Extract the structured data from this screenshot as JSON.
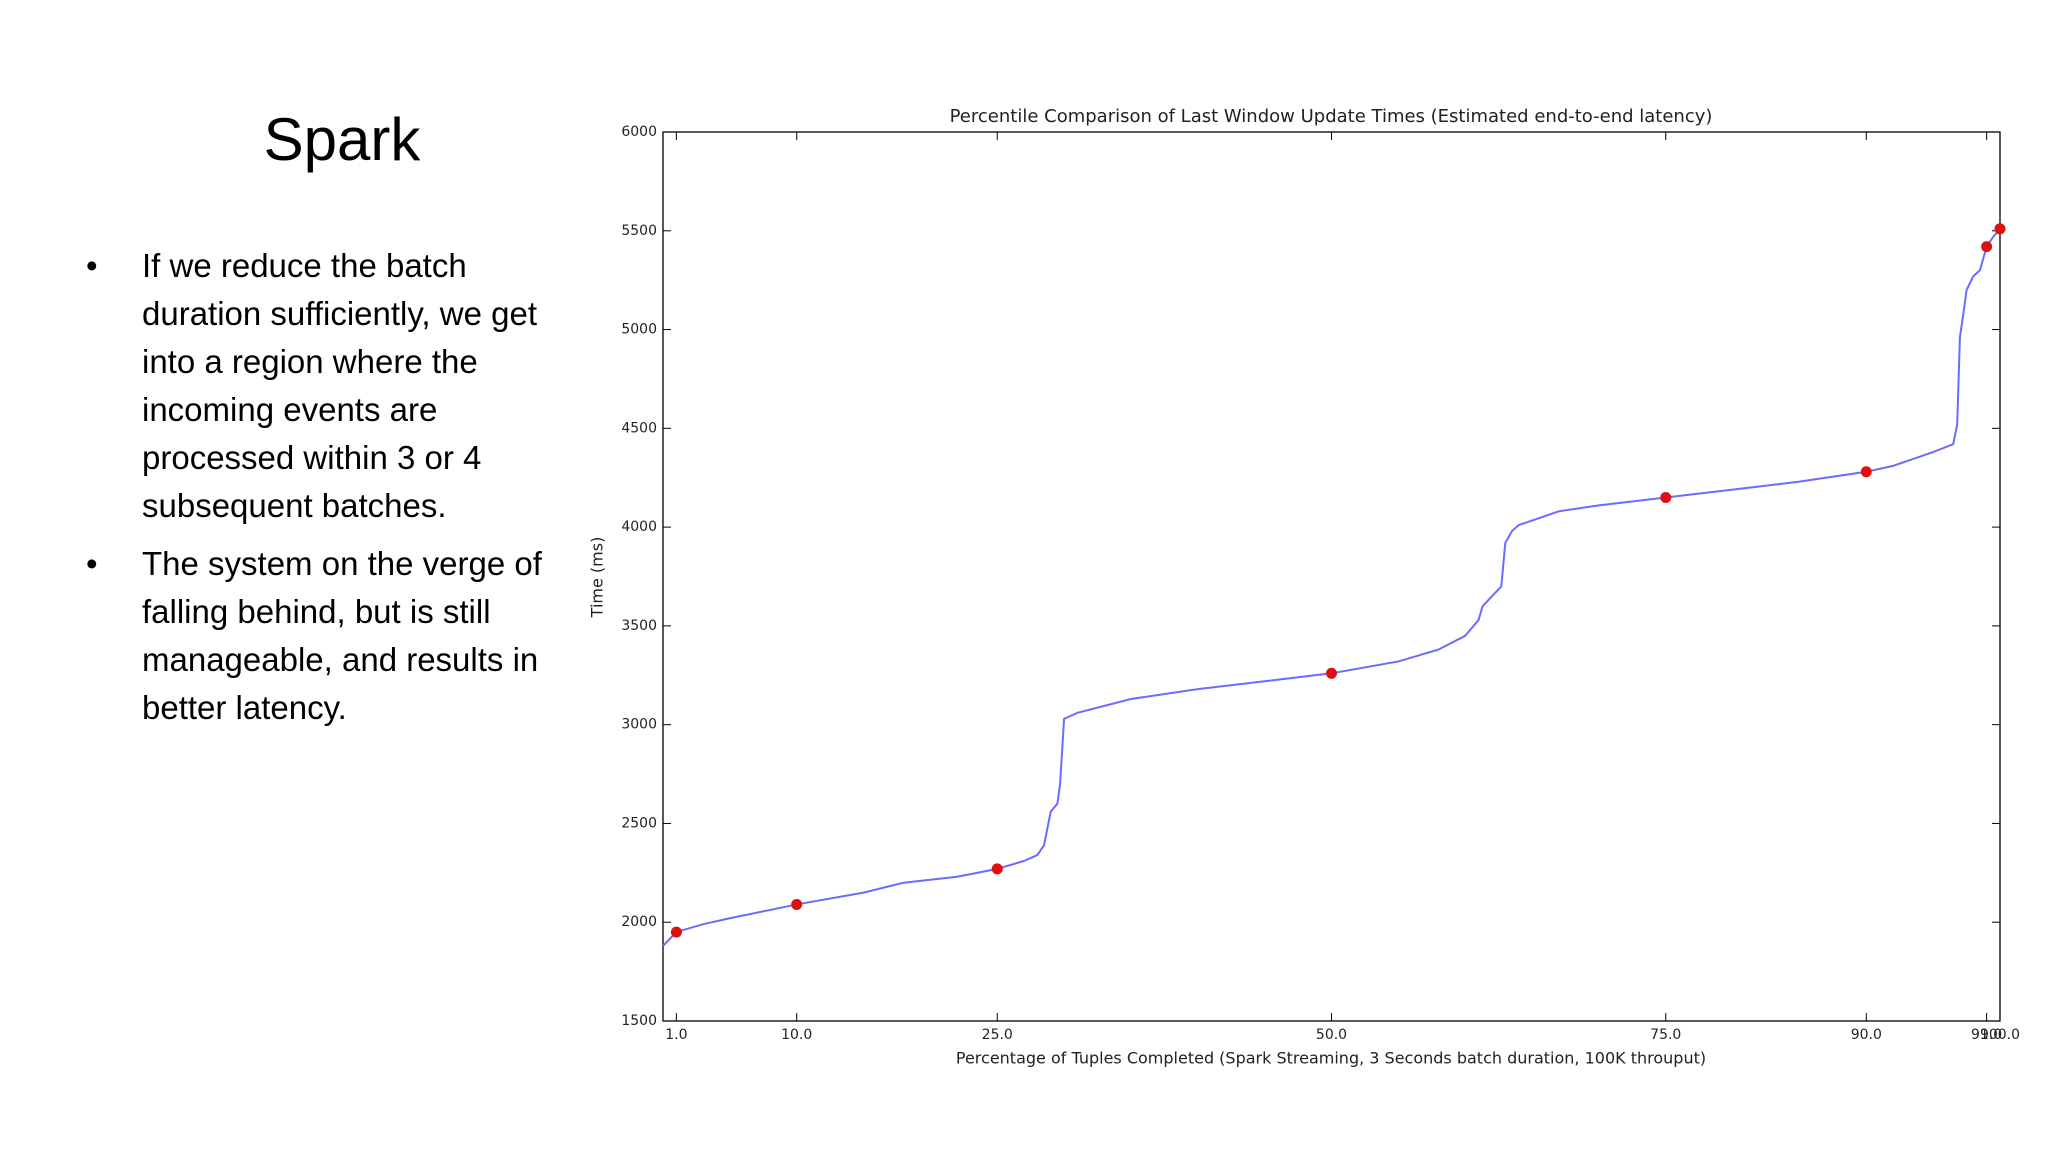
{
  "slide": {
    "title": "Spark",
    "bullets": [
      "If we reduce the batch duration sufficiently, we get into a region where the incoming events are processed within 3 or 4 subsequent batches.",
      "The system on the verge of falling behind, but is still manageable, and results in better latency."
    ]
  },
  "chart_data": {
    "type": "line",
    "title": "Percentile Comparison of Last Window Update Times (Estimated end-to-end latency)",
    "x_label": "Percentage of Tuples Completed (Spark Streaming, 3 Seconds batch duration, 100K throuput)",
    "y_label": "Time (ms)",
    "xlim": [
      0,
      100
    ],
    "ylim": [
      1500,
      6000
    ],
    "xticks": [
      {
        "value": 1,
        "label": "1.0"
      },
      {
        "value": 10,
        "label": "10.0"
      },
      {
        "value": 25,
        "label": "25.0"
      },
      {
        "value": 50,
        "label": "50.0"
      },
      {
        "value": 75,
        "label": "75.0"
      },
      {
        "value": 90,
        "label": "90.0"
      },
      {
        "value": 99,
        "label": "99.0"
      },
      {
        "value": 100,
        "label": "100.0"
      }
    ],
    "yticks": [
      1500,
      2000,
      2500,
      3000,
      3500,
      4000,
      4500,
      5000,
      5500,
      6000
    ],
    "grid": false,
    "series": [
      {
        "style": "line",
        "color": "#6b6bff",
        "x": [
          0,
          1,
          3,
          5,
          10,
          15,
          18,
          22,
          25,
          27,
          28,
          28.5,
          29,
          29.5,
          29.7,
          30,
          31,
          35,
          40,
          45,
          50,
          55,
          58,
          60,
          61,
          61.3,
          62,
          62.7,
          63,
          63.5,
          64,
          67,
          70,
          75,
          80,
          85,
          90,
          92,
          95,
          96.5,
          96.8,
          97,
          97.3,
          97.5,
          98,
          98.5,
          99,
          99.5,
          100
        ],
        "values": [
          1880,
          1950,
          1990,
          2020,
          2090,
          2150,
          2200,
          2230,
          2270,
          2310,
          2340,
          2390,
          2560,
          2600,
          2700,
          3030,
          3060,
          3130,
          3180,
          3220,
          3260,
          3320,
          3380,
          3450,
          3530,
          3600,
          3650,
          3700,
          3920,
          3980,
          4010,
          4080,
          4110,
          4150,
          4190,
          4230,
          4280,
          4310,
          4380,
          4420,
          4520,
          4960,
          5100,
          5200,
          5270,
          5300,
          5420,
          5470,
          5510
        ]
      },
      {
        "style": "scatter",
        "color": "#e01010",
        "x": [
          1,
          10,
          25,
          50,
          75,
          90,
          99,
          100
        ],
        "values": [
          1950,
          2090,
          2270,
          3260,
          4150,
          4280,
          5420,
          5510
        ]
      }
    ]
  }
}
